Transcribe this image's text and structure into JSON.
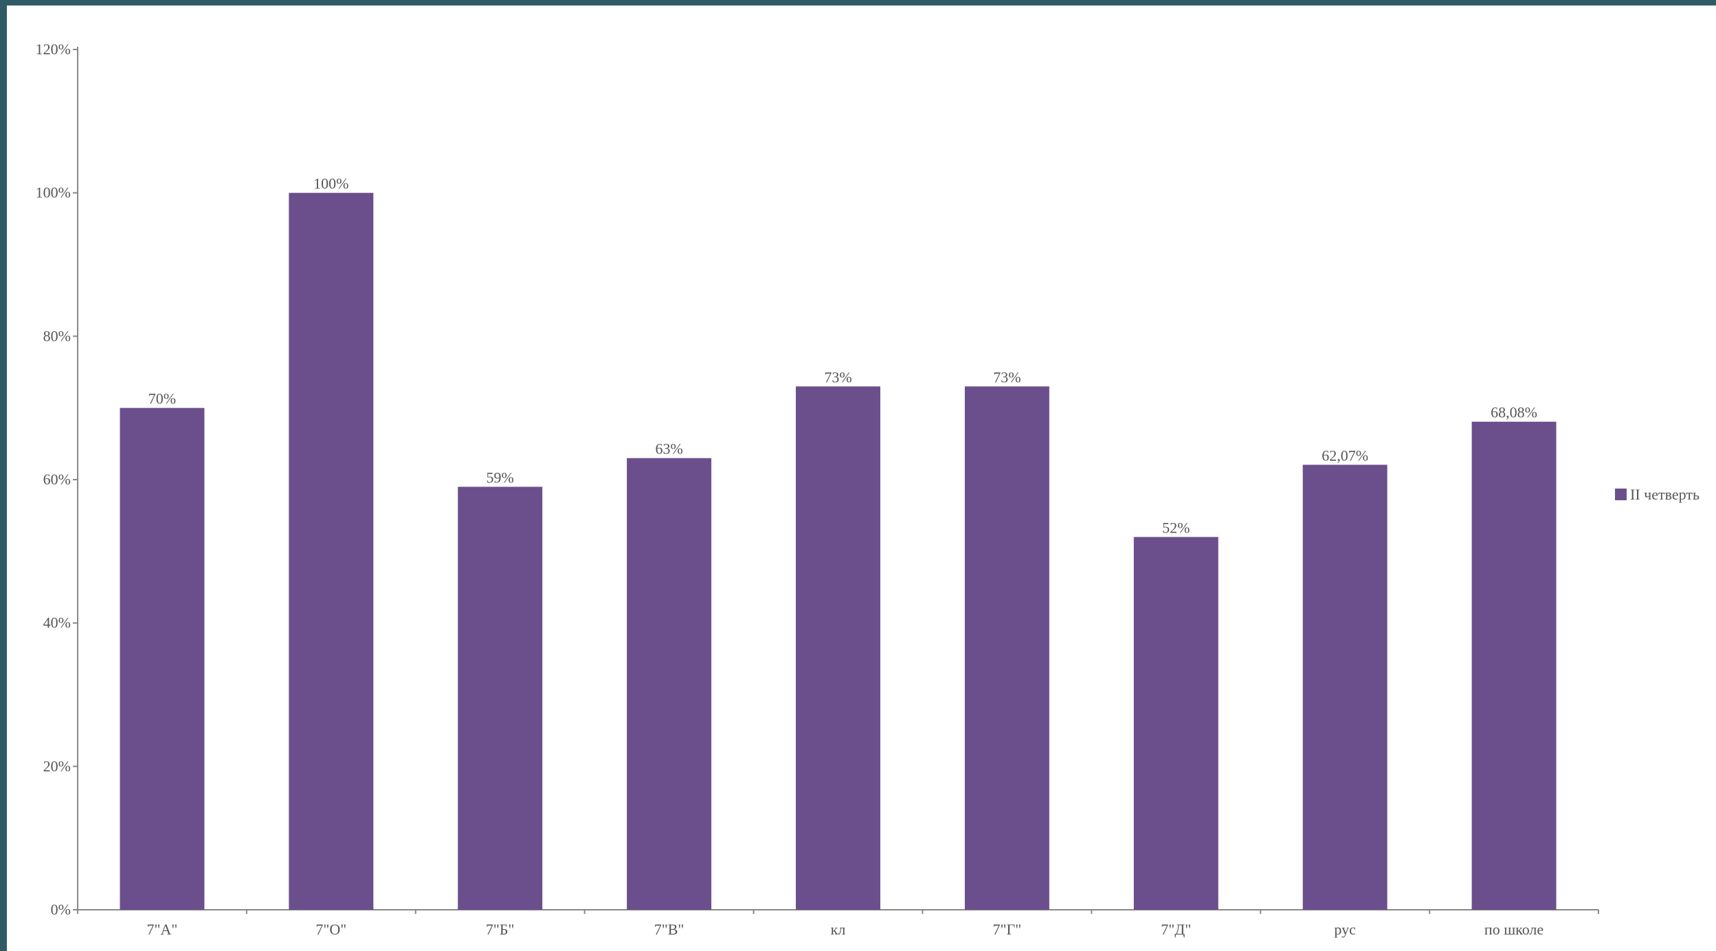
{
  "chart_data": {
    "type": "bar",
    "categories": [
      "7\"А\"",
      "7\"О\"",
      "7\"Б\"",
      "7\"В\"",
      "кл",
      "7\"Г\"",
      "7\"Д\"",
      "рус",
      "по школе"
    ],
    "series": [
      {
        "name": "II четверть",
        "values": [
          70,
          100,
          59,
          63,
          73,
          73,
          52,
          62.07,
          68.08
        ],
        "labels": [
          "70%",
          "100%",
          "59%",
          "63%",
          "73%",
          "73%",
          "52%",
          "62,07%",
          "68,08%"
        ]
      }
    ],
    "ylim": [
      0,
      120
    ],
    "yticks": [
      0,
      20,
      40,
      60,
      80,
      100,
      120
    ],
    "ytick_labels": [
      "0%",
      "20%",
      "40%",
      "60%",
      "80%",
      "100%",
      "120%"
    ],
    "title": "",
    "xlabel": "",
    "ylabel": "",
    "grid": false,
    "legend_position": "right",
    "bar_color": "#6b4f8c",
    "axis_color": "#888888"
  }
}
